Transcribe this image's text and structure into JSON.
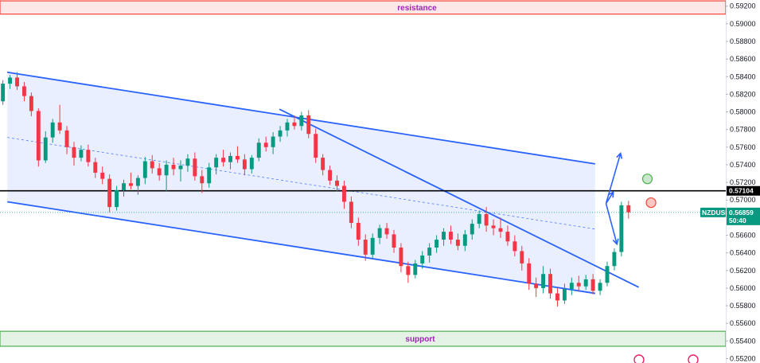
{
  "chart_data": {
    "type": "candlestick",
    "symbol": "NZDUSD",
    "y_axis": {
      "ylim": [
        0.5515,
        0.5927
      ],
      "ticks": [
        "0.59200",
        "0.59000",
        "0.58800",
        "0.58600",
        "0.58400",
        "0.58200",
        "0.58000",
        "0.57800",
        "0.57600",
        "0.57400",
        "0.57200",
        "0.57000",
        "0.56600",
        "0.56400",
        "0.56200",
        "0.56000",
        "0.55800",
        "0.55600",
        "0.55400",
        "0.55200"
      ]
    },
    "zones": {
      "resistance": {
        "label": "resistance",
        "from": 0.5911,
        "to": 0.5926,
        "color": "#f44336"
      },
      "support": {
        "label": "support",
        "from": 0.5534,
        "to": 0.5551,
        "color": "#4caf50"
      }
    },
    "levels": {
      "key_level": {
        "value": 0.57104,
        "label": "0.57104",
        "color": "#000000"
      },
      "current_price": {
        "symbol_label": "NZDUSD",
        "value_label": "0.56859",
        "countdown": "50:40",
        "value": 0.56859,
        "color": "#089981"
      }
    },
    "channel": {
      "fill": "#2962ff",
      "upper": [
        [
          0.01,
          0.5845
        ],
        [
          0.82,
          0.5741
        ]
      ],
      "lower": [
        [
          0.01,
          0.5698
        ],
        [
          0.82,
          0.5594
        ]
      ],
      "mid": [
        [
          0.01,
          0.5771
        ],
        [
          0.82,
          0.5667
        ]
      ]
    },
    "trendline": [
      [
        0.385,
        0.5803
      ],
      [
        0.88,
        0.5601
      ]
    ],
    "arrows": [
      {
        "from": [
          0.835,
          0.5696
        ],
        "to": [
          0.855,
          0.5753
        ]
      },
      {
        "from": [
          0.835,
          0.5696
        ],
        "to": [
          0.845,
          0.5709
        ]
      },
      {
        "from": [
          0.835,
          0.5696
        ],
        "to": [
          0.85,
          0.565
        ]
      }
    ],
    "circles": [
      {
        "at": [
          0.892,
          0.5724
        ],
        "color": "#4caf50"
      },
      {
        "at": [
          0.897,
          0.5697
        ],
        "color": "#f44336"
      }
    ],
    "candles_ohlc": [
      [
        0.5812,
        0.5836,
        0.5808,
        0.5832
      ],
      [
        0.5832,
        0.5842,
        0.5826,
        0.5839
      ],
      [
        0.5839,
        0.5845,
        0.5825,
        0.5829
      ],
      [
        0.5829,
        0.5834,
        0.5812,
        0.5818
      ],
      [
        0.5818,
        0.5822,
        0.5795,
        0.5801
      ],
      [
        0.5801,
        0.5804,
        0.5738,
        0.5745
      ],
      [
        0.5745,
        0.5778,
        0.5742,
        0.5771
      ],
      [
        0.5771,
        0.5792,
        0.5765,
        0.5788
      ],
      [
        0.5788,
        0.5808,
        0.5775,
        0.5779
      ],
      [
        0.5779,
        0.5784,
        0.5752,
        0.576
      ],
      [
        0.576,
        0.5766,
        0.5739,
        0.5748
      ],
      [
        0.5748,
        0.5762,
        0.5744,
        0.5757
      ],
      [
        0.5757,
        0.5763,
        0.5738,
        0.5743
      ],
      [
        0.5743,
        0.5748,
        0.5725,
        0.5731
      ],
      [
        0.5731,
        0.5738,
        0.5718,
        0.5724
      ],
      [
        0.5724,
        0.5729,
        0.5686,
        0.5692
      ],
      [
        0.5692,
        0.5716,
        0.5688,
        0.5711
      ],
      [
        0.5711,
        0.5723,
        0.5704,
        0.5719
      ],
      [
        0.5719,
        0.5731,
        0.5712,
        0.5716
      ],
      [
        0.5716,
        0.5728,
        0.5706,
        0.5725
      ],
      [
        0.5725,
        0.5749,
        0.5718,
        0.5744
      ],
      [
        0.5744,
        0.5751,
        0.573,
        0.5736
      ],
      [
        0.5736,
        0.5742,
        0.5722,
        0.5728
      ],
      [
        0.5728,
        0.5745,
        0.571,
        0.574
      ],
      [
        0.574,
        0.5748,
        0.5728,
        0.5735
      ],
      [
        0.5735,
        0.5745,
        0.5721,
        0.5739
      ],
      [
        0.5739,
        0.5752,
        0.5732,
        0.5747
      ],
      [
        0.5747,
        0.5754,
        0.5722,
        0.5727
      ],
      [
        0.5727,
        0.5734,
        0.5708,
        0.5719
      ],
      [
        0.5719,
        0.5742,
        0.5714,
        0.5737
      ],
      [
        0.5737,
        0.5752,
        0.5729,
        0.5748
      ],
      [
        0.5748,
        0.5757,
        0.5738,
        0.5743
      ],
      [
        0.5743,
        0.5754,
        0.5735,
        0.575
      ],
      [
        0.575,
        0.5761,
        0.5742,
        0.5746
      ],
      [
        0.5746,
        0.5752,
        0.5728,
        0.5735
      ],
      [
        0.5735,
        0.5751,
        0.573,
        0.5748
      ],
      [
        0.5748,
        0.577,
        0.5744,
        0.5765
      ],
      [
        0.5765,
        0.5772,
        0.5755,
        0.576
      ],
      [
        0.576,
        0.5777,
        0.5752,
        0.5772
      ],
      [
        0.5772,
        0.5784,
        0.5766,
        0.5779
      ],
      [
        0.5779,
        0.5792,
        0.5772,
        0.5788
      ],
      [
        0.5788,
        0.5796,
        0.578,
        0.5784
      ],
      [
        0.5784,
        0.58,
        0.5779,
        0.5796
      ],
      [
        0.5796,
        0.5802,
        0.577,
        0.5775
      ],
      [
        0.5775,
        0.5781,
        0.5742,
        0.5748
      ],
      [
        0.5748,
        0.5752,
        0.5728,
        0.5734
      ],
      [
        0.5734,
        0.5739,
        0.5717,
        0.5722
      ],
      [
        0.5722,
        0.5728,
        0.571,
        0.5716
      ],
      [
        0.5716,
        0.5722,
        0.569,
        0.5698
      ],
      [
        0.5698,
        0.5704,
        0.5668,
        0.5674
      ],
      [
        0.5674,
        0.568,
        0.5648,
        0.5655
      ],
      [
        0.5655,
        0.5661,
        0.5631,
        0.5638
      ],
      [
        0.5638,
        0.5662,
        0.5634,
        0.5657
      ],
      [
        0.5657,
        0.5672,
        0.565,
        0.5668
      ],
      [
        0.5668,
        0.5674,
        0.5656,
        0.5661
      ],
      [
        0.5661,
        0.5666,
        0.564,
        0.5646
      ],
      [
        0.5646,
        0.5651,
        0.5618,
        0.5625
      ],
      [
        0.5625,
        0.563,
        0.5606,
        0.5615
      ],
      [
        0.5615,
        0.5632,
        0.5611,
        0.5628
      ],
      [
        0.5628,
        0.5642,
        0.5622,
        0.5637
      ],
      [
        0.5637,
        0.5651,
        0.5629,
        0.5646
      ],
      [
        0.5646,
        0.566,
        0.564,
        0.5655
      ],
      [
        0.5655,
        0.5668,
        0.5648,
        0.5664
      ],
      [
        0.5664,
        0.5671,
        0.565,
        0.5655
      ],
      [
        0.5655,
        0.5662,
        0.5643,
        0.5648
      ],
      [
        0.5648,
        0.5666,
        0.5642,
        0.5661
      ],
      [
        0.5661,
        0.5678,
        0.5655,
        0.5673
      ],
      [
        0.5673,
        0.5688,
        0.5668,
        0.5684
      ],
      [
        0.5684,
        0.5692,
        0.5664,
        0.5671
      ],
      [
        0.5671,
        0.5678,
        0.566,
        0.5668
      ],
      [
        0.5668,
        0.568,
        0.5657,
        0.5664
      ],
      [
        0.5664,
        0.5671,
        0.5648,
        0.5653
      ],
      [
        0.5653,
        0.566,
        0.5636,
        0.5642
      ],
      [
        0.5642,
        0.5648,
        0.562,
        0.5628
      ],
      [
        0.5628,
        0.5634,
        0.5598,
        0.5605
      ],
      [
        0.5605,
        0.5612,
        0.559,
        0.56
      ],
      [
        0.56,
        0.5625,
        0.5594,
        0.5616
      ],
      [
        0.5616,
        0.5622,
        0.5588,
        0.5594
      ],
      [
        0.5594,
        0.56,
        0.5579,
        0.5586
      ],
      [
        0.5586,
        0.5605,
        0.5582,
        0.5599
      ],
      [
        0.5599,
        0.5612,
        0.5592,
        0.5606
      ],
      [
        0.5606,
        0.5614,
        0.5596,
        0.5602
      ],
      [
        0.5602,
        0.5615,
        0.5598,
        0.561
      ],
      [
        0.561,
        0.5616,
        0.5593,
        0.5597
      ],
      [
        0.5597,
        0.561,
        0.5592,
        0.5606
      ],
      [
        0.5606,
        0.563,
        0.5602,
        0.5625
      ],
      [
        0.5625,
        0.5645,
        0.562,
        0.5641
      ],
      [
        0.5641,
        0.5698,
        0.5636,
        0.5694
      ],
      [
        0.5694,
        0.5699,
        0.5679,
        0.5686
      ]
    ]
  }
}
